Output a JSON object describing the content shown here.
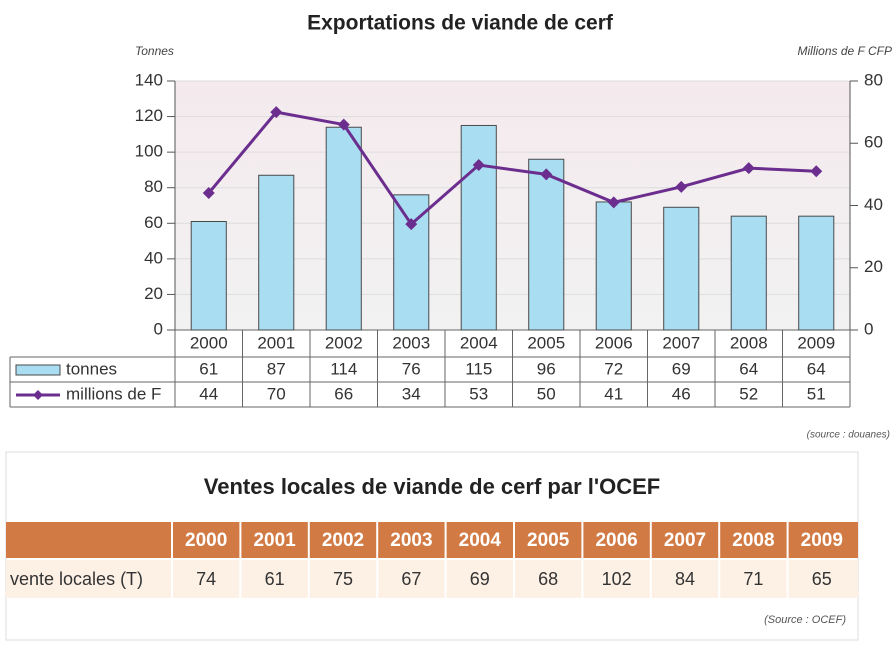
{
  "chart_data": {
    "type": "bar_line",
    "title": "Exportations de viande de cerf",
    "y_label": "Tonnes",
    "y2_label": "Millions de F CFP",
    "categories": [
      "2000",
      "2001",
      "2002",
      "2003",
      "2004",
      "2005",
      "2006",
      "2007",
      "2008",
      "2009"
    ],
    "series": [
      {
        "name": "tonnes",
        "type": "bar",
        "color": "#a9def2",
        "values": [
          61,
          87,
          114,
          76,
          115,
          96,
          72,
          69,
          64,
          64
        ]
      },
      {
        "name": "millions de F",
        "type": "line",
        "axis": "y2",
        "color": "#6b2d8e",
        "values": [
          44,
          70,
          66,
          34,
          53,
          50,
          41,
          46,
          52,
          51
        ]
      }
    ],
    "ylim": [
      0,
      140
    ],
    "yticks": [
      0,
      20,
      40,
      60,
      80,
      100,
      120,
      140
    ],
    "y2lim": [
      0,
      80
    ],
    "y2ticks": [
      0,
      20,
      40,
      60,
      80
    ],
    "grid": true,
    "source": "(source : douanes)"
  },
  "table": {
    "title": "Ventes locales de viande de cerf par l'OCEF",
    "columns": [
      "2000",
      "2001",
      "2002",
      "2003",
      "2004",
      "2005",
      "2006",
      "2007",
      "2008",
      "2009"
    ],
    "rows": [
      [
        "vente locales (T)",
        "74",
        "61",
        "75",
        "67",
        "69",
        "68",
        "102",
        "84",
        "71",
        "65"
      ]
    ],
    "source": "(Source : OCEF)"
  }
}
